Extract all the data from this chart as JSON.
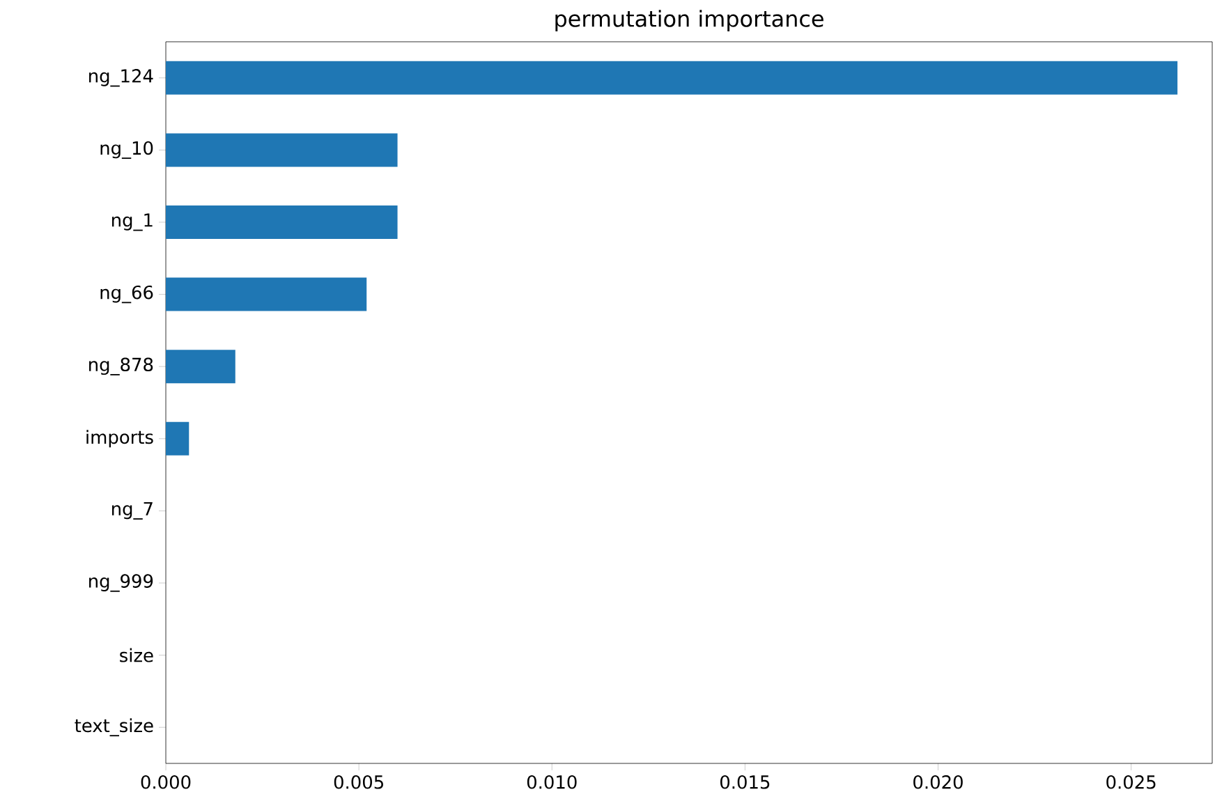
{
  "chart_data": {
    "type": "bar",
    "orientation": "horizontal",
    "title": "permutation importance",
    "categories": [
      "ng_124",
      "ng_10",
      "ng_1",
      "ng_66",
      "ng_878",
      "imports",
      "ng_7",
      "ng_999",
      "size",
      "text_size"
    ],
    "values": [
      0.0262,
      0.006,
      0.006,
      0.0052,
      0.0018,
      0.0006,
      0,
      0,
      0,
      0
    ],
    "color": "#1f77b4",
    "xlim": [
      0,
      0.0271
    ],
    "xticks": [
      {
        "value": 0,
        "label": "0.000"
      },
      {
        "value": 0.005,
        "label": "0.005"
      },
      {
        "value": 0.01,
        "label": "0.010"
      },
      {
        "value": 0.015,
        "label": "0.015"
      },
      {
        "value": 0.02,
        "label": "0.020"
      },
      {
        "value": 0.025,
        "label": "0.025"
      }
    ],
    "grid": false
  }
}
